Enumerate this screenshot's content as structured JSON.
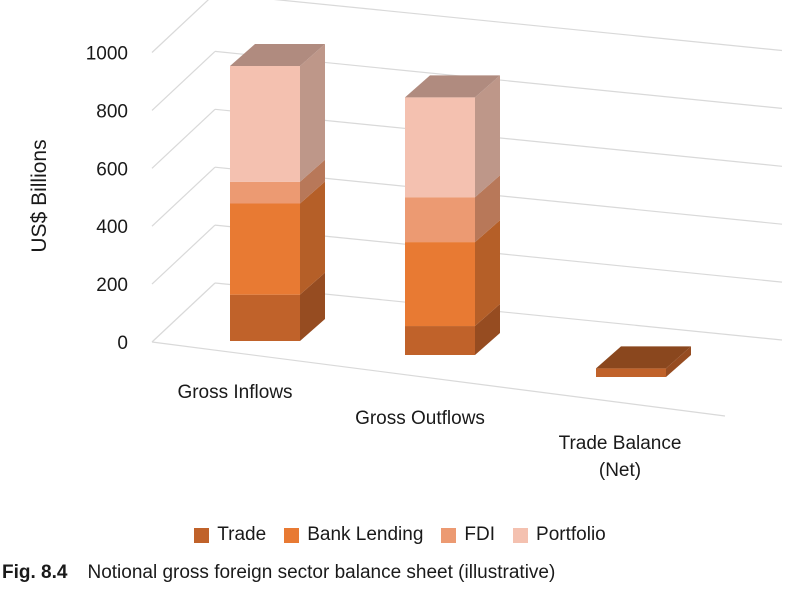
{
  "chart_data": {
    "type": "bar",
    "stacked": true,
    "three_d": true,
    "categories": [
      [
        "Gross Inflows"
      ],
      [
        "Gross Outflows"
      ],
      [
        "Trade Balance",
        "(Net)"
      ]
    ],
    "series": [
      {
        "name": "Trade",
        "values": [
          160,
          100,
          -30
        ],
        "color": "#C0622A"
      },
      {
        "name": "Bank Lending",
        "values": [
          315,
          290,
          0
        ],
        "color": "#E87A33"
      },
      {
        "name": "FDI",
        "values": [
          75,
          155,
          0
        ],
        "color": "#EC9A72"
      },
      {
        "name": "Portfolio",
        "values": [
          400,
          345,
          0
        ],
        "color": "#F4C1B0"
      }
    ],
    "ylabel": "US$ Billions",
    "ylim": [
      0,
      1000
    ],
    "yticks": [
      "0",
      "200",
      "400",
      "600",
      "800",
      "1000"
    ],
    "grid": true,
    "legend": "bottom"
  },
  "caption": {
    "number": "Fig. 8.4",
    "text": "Notional gross foreign sector balance sheet (illustrative)"
  }
}
